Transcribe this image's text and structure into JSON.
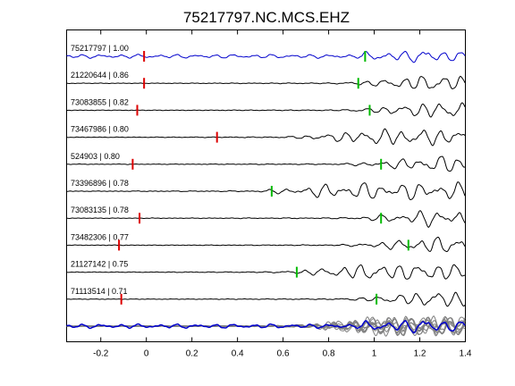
{
  "chart_data": {
    "type": "line",
    "title": "75217797.NC.MCS.EHZ",
    "xlabel": "",
    "ylabel": "",
    "xlim": [
      -0.35,
      1.4
    ],
    "xticks": [
      "-0.2",
      "0",
      "0.2",
      "0.4",
      "0.6",
      "0.8",
      "1",
      "1.2",
      "1.4"
    ],
    "xtick_values": [
      -0.2,
      0,
      0.2,
      0.4,
      0.6,
      0.8,
      1.0,
      1.2,
      1.4
    ],
    "grid": false,
    "colors": {
      "reference_trace": "#0000cc",
      "trace": "#000000",
      "stack_trace": "#808080",
      "pick_red": "#dd0000",
      "pick_green": "#00bb00"
    },
    "traces": [
      {
        "label": "75217797 | 1.00",
        "red_pick": -0.01,
        "green_pick": 0.96,
        "reference": true
      },
      {
        "label": "21220644 | 0.86",
        "red_pick": -0.01,
        "green_pick": 0.93
      },
      {
        "label": "73083855 | 0.82",
        "red_pick": -0.04,
        "green_pick": 0.98
      },
      {
        "label": "73467986 | 0.80",
        "red_pick": 0.31,
        "green_pick": null
      },
      {
        "label": "524903 | 0.80",
        "red_pick": -0.06,
        "green_pick": 1.03
      },
      {
        "label": "73396896 | 0.78",
        "red_pick": null,
        "green_pick": 0.55
      },
      {
        "label": "73083135 | 0.78",
        "red_pick": -0.03,
        "green_pick": 1.03
      },
      {
        "label": "73482306 | 0.77",
        "red_pick": -0.12,
        "green_pick": 1.15
      },
      {
        "label": "21127142 | 0.75",
        "red_pick": null,
        "green_pick": 0.66
      },
      {
        "label": "71113514 | 0.71",
        "red_pick": -0.11,
        "green_pick": 1.01
      }
    ]
  }
}
